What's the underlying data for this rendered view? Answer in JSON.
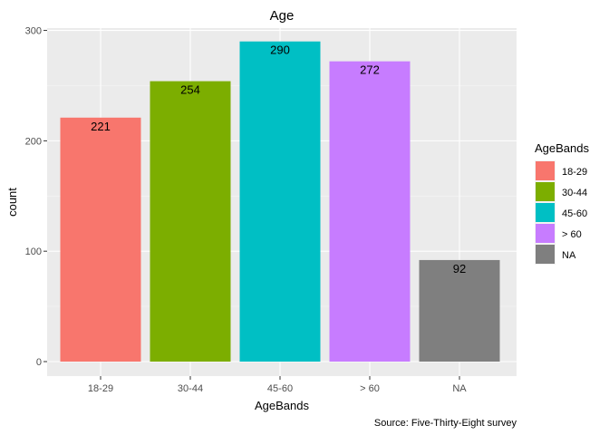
{
  "chart_data": {
    "type": "bar",
    "title": "Age",
    "xlabel": "AgeBands",
    "ylabel": "count",
    "categories": [
      "18-29",
      "30-44",
      "45-60",
      "> 60",
      "NA"
    ],
    "values": [
      221,
      254,
      290,
      272,
      92
    ],
    "colors": [
      "#F8766D",
      "#7CAE00",
      "#00BFC4",
      "#C77CFF",
      "#7F7F7F"
    ],
    "ylim": [
      0,
      305
    ],
    "yticks": [
      0,
      100,
      200,
      300
    ],
    "grid": true,
    "legend": {
      "title": "AgeBands",
      "entries": [
        "18-29",
        "30-44",
        "45-60",
        "> 60",
        "NA"
      ],
      "position": "right"
    },
    "caption": "Source: Five-Thirty-Eight survey"
  }
}
